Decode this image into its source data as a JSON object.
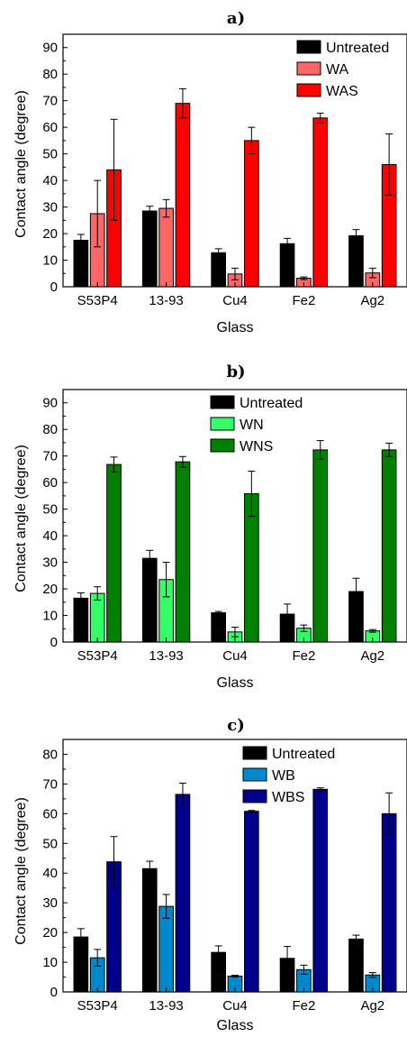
{
  "chart_data": [
    {
      "type": "bar",
      "title": "a)",
      "xlabel": "Glass",
      "ylabel": "Contact angle (degree)",
      "ylim": [
        0,
        95
      ],
      "yticks": [
        0,
        10,
        20,
        30,
        40,
        50,
        60,
        70,
        80,
        90
      ],
      "grid": false,
      "legend_position": "top-right",
      "categories": [
        "S53P4",
        "13-93",
        "Cu4",
        "Fe2",
        "Ag2"
      ],
      "series": [
        {
          "name": "Untreated",
          "color": "#000000",
          "values": [
            17.5,
            28.5,
            12.8,
            16.2,
            19.2
          ],
          "errors": [
            2.2,
            1.8,
            1.5,
            2.0,
            2.3
          ]
        },
        {
          "name": "WA",
          "color": "#ff6666",
          "values": [
            27.5,
            29.5,
            4.8,
            3.2,
            5.2
          ],
          "errors": [
            12.5,
            3.3,
            2.2,
            0.5,
            1.8
          ]
        },
        {
          "name": "WAS",
          "color": "#ff0000",
          "values": [
            44.0,
            69.0,
            55.0,
            63.5,
            46.0
          ],
          "errors": [
            19.0,
            5.5,
            5.0,
            1.8,
            11.5
          ]
        }
      ]
    },
    {
      "type": "bar",
      "title": "b)",
      "xlabel": "Glass",
      "ylabel": "Contact angle (degree)",
      "ylim": [
        0,
        95
      ],
      "yticks": [
        0,
        10,
        20,
        30,
        40,
        50,
        60,
        70,
        80,
        90
      ],
      "grid": false,
      "legend_position": "top-left",
      "categories": [
        "S53P4",
        "13-93",
        "Cu4",
        "Fe2",
        "Ag2"
      ],
      "series": [
        {
          "name": "Untreated",
          "color": "#000000",
          "values": [
            16.5,
            31.5,
            11.0,
            10.5,
            19.0
          ],
          "errors": [
            2.0,
            3.0,
            0.5,
            3.8,
            5.0
          ]
        },
        {
          "name": "WN",
          "color": "#33ff66",
          "values": [
            18.3,
            23.5,
            3.8,
            5.2,
            4.2
          ],
          "errors": [
            2.5,
            6.5,
            1.8,
            1.2,
            0.5
          ]
        },
        {
          "name": "WNS",
          "color": "#008000",
          "values": [
            66.8,
            67.8,
            55.8,
            72.3,
            72.3
          ],
          "errors": [
            2.8,
            2.0,
            8.5,
            3.5,
            2.5
          ]
        }
      ]
    },
    {
      "type": "bar",
      "title": "c)",
      "xlabel": "Glass",
      "ylabel": "Contact angle (degree)",
      "ylim": [
        0,
        85
      ],
      "yticks": [
        0,
        10,
        20,
        30,
        40,
        50,
        60,
        70,
        80
      ],
      "grid": false,
      "legend_position": "top-center",
      "categories": [
        "S53P4",
        "13-93",
        "Cu4",
        "Fe2",
        "Ag2"
      ],
      "series": [
        {
          "name": "Untreated",
          "color": "#000000",
          "values": [
            18.5,
            41.5,
            13.3,
            11.3,
            17.8
          ],
          "errors": [
            2.8,
            2.5,
            2.2,
            4.0,
            1.3
          ]
        },
        {
          "name": "WB",
          "color": "#0088cc",
          "values": [
            11.5,
            28.8,
            5.3,
            7.5,
            5.7
          ],
          "errors": [
            2.8,
            4.0,
            0.3,
            1.5,
            0.8
          ]
        },
        {
          "name": "WBS",
          "color": "#00008b",
          "values": [
            43.8,
            66.5,
            60.8,
            68.2,
            60.0
          ],
          "errors": [
            8.5,
            3.8,
            0.3,
            0.5,
            7.0
          ]
        }
      ]
    }
  ]
}
